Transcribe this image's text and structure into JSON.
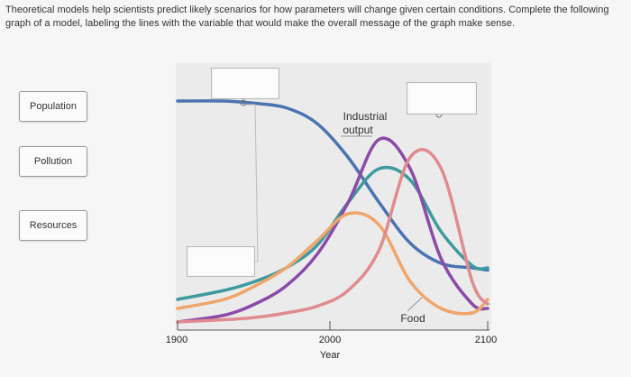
{
  "instructions": "Theoretical models help scientists predict likely scenarios for how parameters will change given certain conditions. Complete the following graph of a model, labeling the lines with the variable that would make the overall message of the graph make sense.",
  "drag_options": [
    {
      "id": "population",
      "label": "Population"
    },
    {
      "id": "pollution",
      "label": "Pollution"
    },
    {
      "id": "resources",
      "label": "Resources"
    }
  ],
  "colors": {
    "resources": "#4a74b0",
    "teal": "#3f9a9f",
    "industrial": "#8b4aa8",
    "food": "#f0a56a",
    "pink": "#df8b8f",
    "panel": "#ebebeb",
    "axis": "#555555"
  },
  "chart_data": {
    "type": "line",
    "xlabel": "Year",
    "ylabel": "",
    "xlim": [
      1900,
      2100
    ],
    "x_ticks": [
      1900,
      2000,
      2100
    ],
    "labels": {
      "industrial_output": [
        "Industrial",
        "output"
      ],
      "food": "Food"
    },
    "series": [
      {
        "id": "resources",
        "name": "",
        "x": [
          1900,
          1930,
          1950,
          1970,
          1990,
          2010,
          2030,
          2050,
          2070,
          2090,
          2100
        ],
        "y": [
          100,
          100,
          99,
          97,
          90,
          75,
          55,
          37,
          28,
          26,
          25
        ]
      },
      {
        "id": "teal",
        "name": "",
        "x": [
          1900,
          1930,
          1950,
          1970,
          1990,
          2010,
          2030,
          2050,
          2070,
          2090,
          2100
        ],
        "y": [
          12,
          16,
          20,
          26,
          36,
          55,
          70,
          65,
          42,
          27,
          26
        ]
      },
      {
        "id": "industrial",
        "name": "Industrial output",
        "x": [
          1900,
          1930,
          1950,
          1970,
          1990,
          2010,
          2030,
          2050,
          2070,
          2090,
          2100
        ],
        "y": [
          2,
          5,
          10,
          18,
          32,
          55,
          83,
          70,
          30,
          10,
          8
        ]
      },
      {
        "id": "food",
        "name": "Food",
        "x": [
          1900,
          1930,
          1950,
          1970,
          1990,
          2010,
          2030,
          2050,
          2070,
          2090,
          2100
        ],
        "y": [
          8,
          12,
          18,
          26,
          38,
          50,
          45,
          20,
          8,
          6,
          12
        ]
      },
      {
        "id": "pink",
        "name": "",
        "x": [
          1900,
          1930,
          1950,
          1970,
          1990,
          2010,
          2030,
          2050,
          2070,
          2090,
          2100
        ],
        "y": [
          2,
          3,
          4,
          6,
          9,
          16,
          34,
          75,
          70,
          20,
          10
        ]
      }
    ]
  }
}
